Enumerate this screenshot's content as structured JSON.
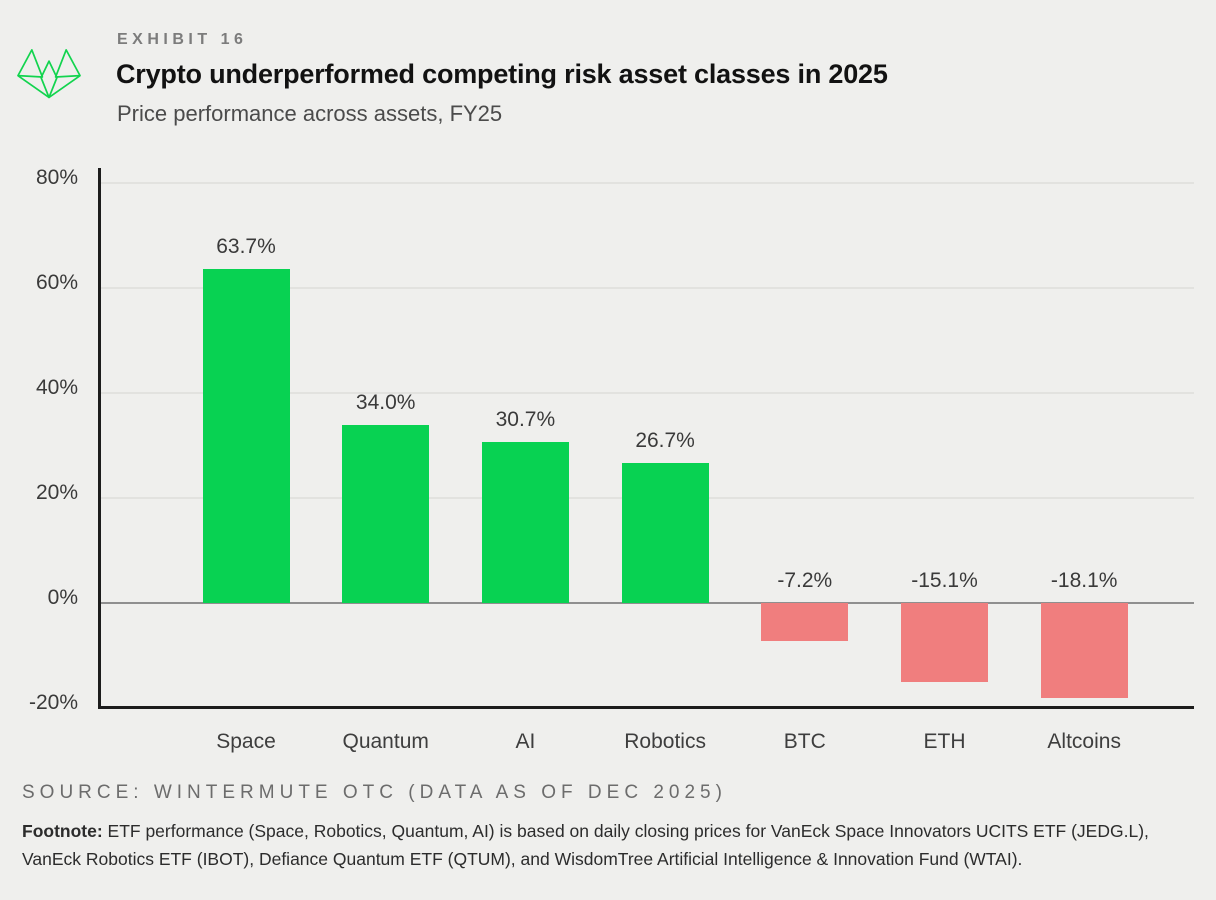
{
  "header": {
    "exhibit_label": "EXHIBIT 16",
    "title": "Crypto underperformed competing risk asset classes in 2025",
    "subtitle": "Price performance across assets, FY25",
    "logo_icon": "wintermute-logo"
  },
  "chart_data": {
    "type": "bar",
    "categories": [
      "Space",
      "Quantum",
      "AI",
      "Robotics",
      "BTC",
      "ETH",
      "Altcoins"
    ],
    "values": [
      63.7,
      34.0,
      30.7,
      26.7,
      -7.2,
      -15.1,
      -18.1
    ],
    "value_labels": [
      "63.7%",
      "34.0%",
      "30.7%",
      "26.7%",
      "-7.2%",
      "-15.1%",
      "-18.1%"
    ],
    "title": "Crypto underperformed competing risk asset classes in 2025",
    "subtitle": "Price performance across assets, FY25",
    "xlabel": "",
    "ylabel": "",
    "ylim": [
      -20,
      82.5
    ],
    "yticks": [
      80,
      60,
      40,
      20,
      0,
      -20
    ],
    "ytick_labels": [
      "80%",
      "60%",
      "40%",
      "20%",
      "0%",
      "-20%"
    ],
    "grid": true,
    "legend": false,
    "colors": {
      "positive": "#08d252",
      "negative": "#f07e7e",
      "background": "#efefed",
      "logo_green": "#12d44e",
      "axis": "#1c1c1c",
      "gridline": "#e2e2df",
      "zero_line": "#8f8f8f"
    }
  },
  "footer": {
    "source": "SOURCE: WINTERMUTE OTC (DATA AS OF DEC 2025)",
    "footnote_label": "Footnote:",
    "footnote_text": " ETF performance (Space, Robotics, Quantum, AI) is based on daily closing prices for VanEck Space Innovators UCITS ETF (JEDG.L), VanEck Robotics ETF (IBOT), Defiance Quantum ETF (QTUM), and WisdomTree Artificial Intelligence & Innovation Fund (WTAI)."
  }
}
